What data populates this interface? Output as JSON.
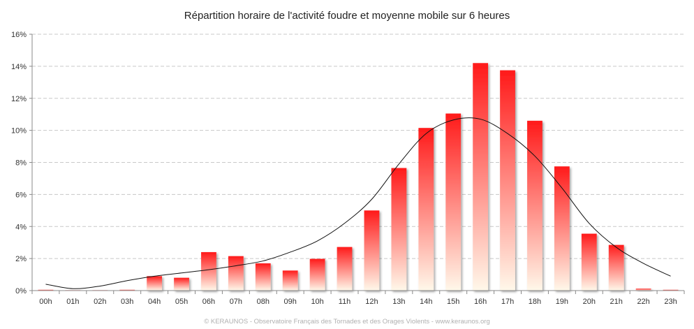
{
  "chart_data": {
    "type": "bar",
    "title": "Répartition horaire de l'activité foudre et moyenne mobile sur 6 heures",
    "categories": [
      "00h",
      "01h",
      "02h",
      "03h",
      "04h",
      "05h",
      "06h",
      "07h",
      "08h",
      "09h",
      "10h",
      "11h",
      "12h",
      "13h",
      "14h",
      "15h",
      "16h",
      "17h",
      "18h",
      "19h",
      "20h",
      "21h",
      "22h",
      "23h"
    ],
    "series": [
      {
        "values": [
          0.05,
          0.02,
          0.02,
          0.05,
          0.9,
          0.8,
          2.4,
          2.15,
          1.7,
          1.25,
          1.98,
          2.72,
          5.0,
          7.65,
          10.15,
          11.05,
          14.2,
          13.75,
          10.6,
          7.75,
          3.55,
          2.85,
          0.12,
          0.05
        ],
        "kind": "bar"
      },
      {
        "values": [
          0.4,
          0.12,
          0.28,
          0.62,
          0.9,
          1.1,
          1.3,
          1.55,
          1.85,
          2.4,
          3.1,
          4.2,
          5.7,
          7.9,
          9.8,
          10.65,
          10.7,
          9.8,
          8.4,
          6.4,
          4.2,
          2.7,
          1.7,
          0.9
        ],
        "kind": "line"
      }
    ],
    "ylim": [
      0,
      16
    ],
    "yticks": [
      "0%",
      "2%",
      "4%",
      "6%",
      "8%",
      "10%",
      "12%",
      "14%",
      "16%"
    ],
    "grid": true,
    "colors": {
      "bar_top": "#ff1a1a",
      "bar_bottom": "#fff8ea",
      "line": "#111111",
      "grid": "#c8c8c8"
    }
  },
  "footer": {
    "credit": "© KERAUNOS - Observatoire Français des Tornades et des Orages Violents - www.keraunos.org"
  }
}
